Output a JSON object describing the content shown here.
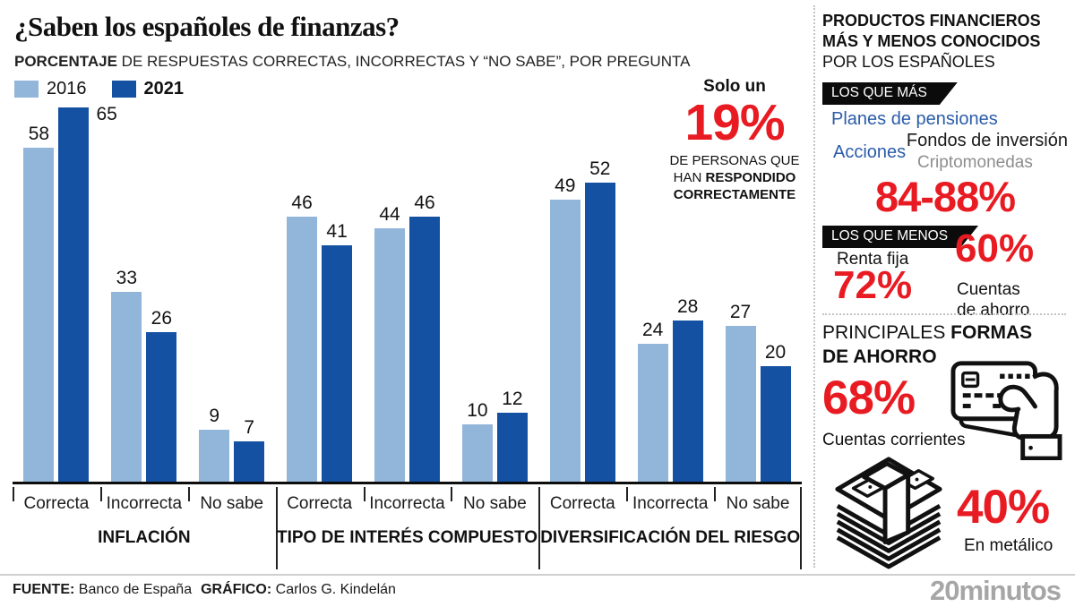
{
  "header": {
    "title": "¿Saben los españoles de finanzas?",
    "subtitle_lead": "PORCENTAJE",
    "subtitle_rest": " DE RESPUESTAS CORRECTAS, INCORRECTAS Y “NO SABE”, POR PREGUNTA"
  },
  "annotation": {
    "lead": "Solo un",
    "value": "19%",
    "line1": "DE PERSONAS QUE",
    "line2_regular": "HAN ",
    "line2_bold": "RESPONDIDO",
    "line3": "CORRECTAMENTE"
  },
  "chart_data": {
    "type": "bar",
    "title": "¿Saben los españoles de finanzas?",
    "subtitle": "PORCENTAJE DE RESPUESTAS CORRECTAS, INCORRECTAS Y “NO SABE”, POR PREGUNTA",
    "unit": "percent",
    "ylim": [
      0,
      65
    ],
    "grid": false,
    "legend_position": "top-left",
    "groups": [
      "INFLACIÓN",
      "TIPO DE INTERÉS COMPUESTO",
      "DIVERSIFICACIÓN DEL RIESGO"
    ],
    "categories": [
      "Correcta",
      "Incorrecta",
      "No sabe"
    ],
    "series": [
      {
        "name": "2016",
        "color": "#92b5da",
        "values": [
          [
            58,
            33,
            9
          ],
          [
            46,
            44,
            10
          ],
          [
            49,
            24,
            27
          ]
        ]
      },
      {
        "name": "2021",
        "color": "#1451a3",
        "values": [
          [
            65,
            26,
            7
          ],
          [
            41,
            46,
            12
          ],
          [
            52,
            28,
            20
          ]
        ]
      }
    ]
  },
  "sidebar": {
    "title_line1": "PRODUCTOS FINANCIEROS",
    "title_line2": "MÁS Y MENOS CONOCIDOS",
    "title_line3": "POR LOS ESPAÑOLES",
    "most_badge": "LOS QUE MÁS",
    "products_most": [
      "Planes de pensiones",
      "Fondos de inversión",
      "Acciones",
      "Criptomonedas"
    ],
    "most_value": "84-88%",
    "least_badge": "LOS QUE MENOS",
    "least_item1_label": "Renta fija",
    "least_item1_value": "72%",
    "least_item2_value": "60%",
    "least_item2_label_line1": "Cuentas",
    "least_item2_label_line2": "de ahorro",
    "savings_title_regular": "PRINCIPALES ",
    "savings_title_bold": "FORMAS",
    "savings_title_line2": "DE AHORRO",
    "savings_item1_value": "68%",
    "savings_item1_label": "Cuentas corrientes",
    "savings_item2_value": "40%",
    "savings_item2_label": "En metálico"
  },
  "footer": {
    "source_label": "FUENTE:",
    "source_value": " Banco de España",
    "credit_label": "GRÁFICO:",
    "credit_value": " Carlos G. Kindelán",
    "brand": "20minutos"
  },
  "colors": {
    "accent_red": "#e81b22",
    "blue_2016": "#92b5da",
    "blue_2021": "#1451a3",
    "label_blue": "#2b5ca8",
    "muted_gray": "#8e8e8e"
  }
}
